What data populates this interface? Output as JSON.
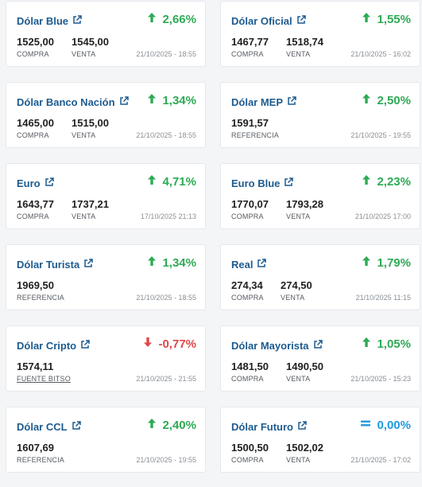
{
  "cards": [
    {
      "name": "Dólar Blue",
      "change": "2,66%",
      "dir": "up",
      "values": [
        {
          "value": "1525,00",
          "label": "COMPRA"
        },
        {
          "value": "1545,00",
          "label": "VENTA"
        }
      ],
      "date": "21/10/2025 - 18:55"
    },
    {
      "name": "Dólar Oficial",
      "change": "1,55%",
      "dir": "up",
      "values": [
        {
          "value": "1467,77",
          "label": "COMPRA"
        },
        {
          "value": "1518,74",
          "label": "VENTA"
        }
      ],
      "date": "21/10/2025 - 16:02"
    },
    {
      "name": "Dólar Banco Nación",
      "change": "1,34%",
      "dir": "up",
      "values": [
        {
          "value": "1465,00",
          "label": "COMPRA"
        },
        {
          "value": "1515,00",
          "label": "VENTA"
        }
      ],
      "date": "21/10/2025 - 18:55"
    },
    {
      "name": "Dólar MEP",
      "change": "2,50%",
      "dir": "up",
      "values": [
        {
          "value": "1591,57",
          "label": "REFERENCIA"
        }
      ],
      "date": "21/10/2025 - 19:55"
    },
    {
      "name": "Euro",
      "change": "4,71%",
      "dir": "up",
      "values": [
        {
          "value": "1643,77",
          "label": "COMPRA"
        },
        {
          "value": "1737,21",
          "label": "VENTA"
        }
      ],
      "date": "17/10/2025 21:13"
    },
    {
      "name": "Euro Blue",
      "change": "2,23%",
      "dir": "up",
      "values": [
        {
          "value": "1770,07",
          "label": "COMPRA"
        },
        {
          "value": "1793,28",
          "label": "VENTA"
        }
      ],
      "date": "21/10/2025 17:00"
    },
    {
      "name": "Dólar Turista",
      "change": "1,34%",
      "dir": "up",
      "values": [
        {
          "value": "1969,50",
          "label": "REFERENCIA"
        }
      ],
      "date": "21/10/2025 - 18:55"
    },
    {
      "name": "Real",
      "change": "1,79%",
      "dir": "up",
      "values": [
        {
          "value": "274,34",
          "label": "COMPRA"
        },
        {
          "value": "274,50",
          "label": "VENTA"
        }
      ],
      "date": "21/10/2025 11:15"
    },
    {
      "name": "Dólar Cripto",
      "change": "-0,77%",
      "dir": "down",
      "values": [
        {
          "value": "1574,11",
          "label": "FUENTE BITSO",
          "link": true
        }
      ],
      "date": "21/10/2025 - 21:55"
    },
    {
      "name": "Dólar Mayorista",
      "change": "1,05%",
      "dir": "up",
      "values": [
        {
          "value": "1481,50",
          "label": "COMPRA"
        },
        {
          "value": "1490,50",
          "label": "VENTA"
        }
      ],
      "date": "21/10/2025 - 15:23"
    },
    {
      "name": "Dólar CCL",
      "change": "2,40%",
      "dir": "up",
      "values": [
        {
          "value": "1607,69",
          "label": "REFERENCIA"
        }
      ],
      "date": "21/10/2025 - 19:55"
    },
    {
      "name": "Dólar Futuro",
      "change": "0,00%",
      "dir": "flat",
      "values": [
        {
          "value": "1500,50",
          "label": "COMPRA"
        },
        {
          "value": "1502,02",
          "label": "VENTA"
        }
      ],
      "date": "21/10/2025 - 17:02"
    }
  ],
  "icons": {
    "link": "external-link-icon",
    "up": "arrow-up-icon",
    "down": "arrow-down-icon",
    "flat": "equals-icon"
  },
  "colors": {
    "title": "#1d5b8f",
    "up": "#2eaa55",
    "down": "#e04848",
    "flat": "#1f9be0"
  }
}
